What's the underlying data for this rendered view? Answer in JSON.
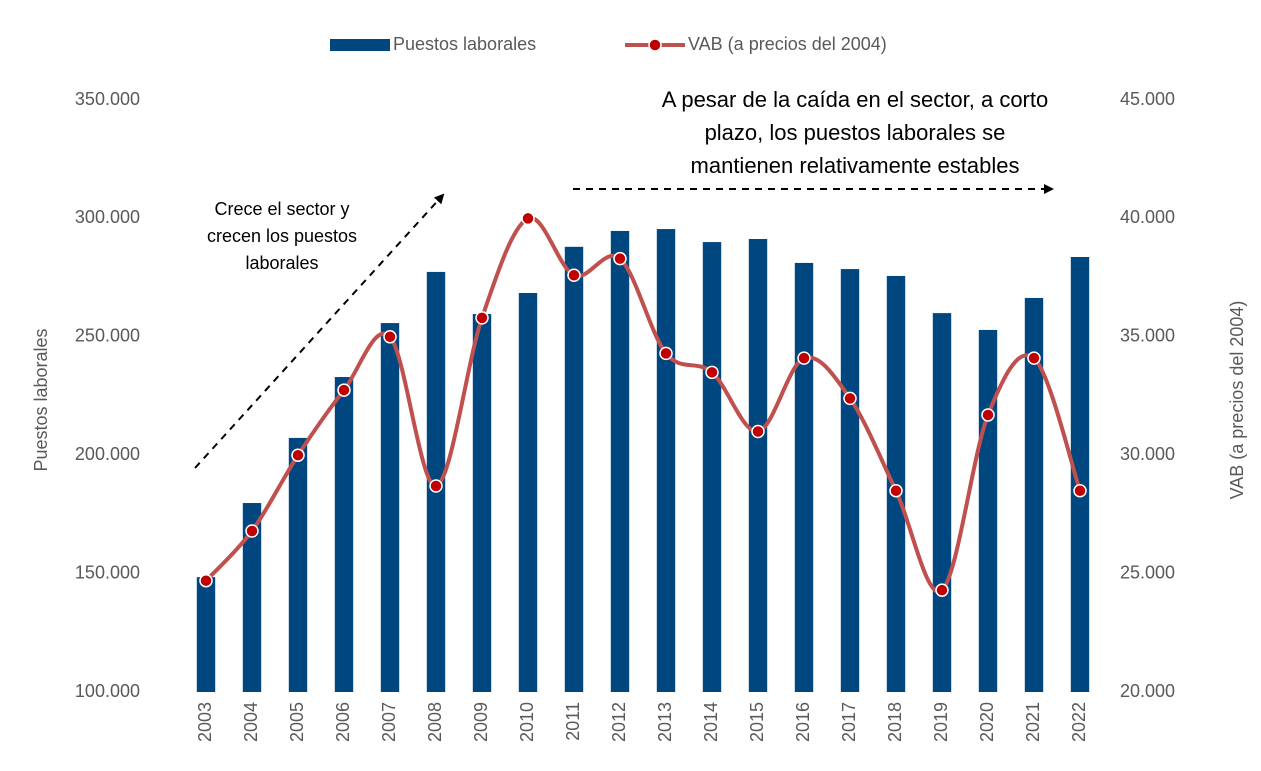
{
  "chart_data": {
    "type": "bar_line",
    "categories": [
      "2003",
      "2004",
      "2005",
      "2006",
      "2007",
      "2008",
      "2009",
      "2010",
      "2011",
      "2012",
      "2013",
      "2014",
      "2015",
      "2016",
      "2017",
      "2018",
      "2019",
      "2020",
      "2021",
      "2022"
    ],
    "series": [
      {
        "name": "Puestos laborales",
        "type": "bar",
        "color": "#00467f",
        "values": [
          148500,
          179800,
          207300,
          233000,
          255800,
          277400,
          259600,
          268500,
          288000,
          294700,
          295500,
          290000,
          291300,
          281200,
          278600,
          275700,
          260000,
          252900,
          266400,
          283700
        ]
      },
      {
        "name": "VAB (a precios del 2004)",
        "type": "line",
        "axis": "y2",
        "color": "#c0504d",
        "marker_color": "#c00000",
        "values": [
          24700,
          26800,
          30000,
          32750,
          35000,
          28700,
          35800,
          40000,
          37600,
          38300,
          34300,
          33500,
          31000,
          34100,
          32400,
          28500,
          24300,
          31700,
          34100,
          28500
        ]
      }
    ],
    "ylabel": "Puestos laborales",
    "y2label": "VAB (a precios del 2004)",
    "ylim": [
      100000,
      350000
    ],
    "yticks": [
      {
        "value": 100000,
        "label": "100.000"
      },
      {
        "value": 150000,
        "label": "150.000"
      },
      {
        "value": 200000,
        "label": "200.000"
      },
      {
        "value": 250000,
        "label": "250.000"
      },
      {
        "value": 300000,
        "label": "300.000"
      },
      {
        "value": 350000,
        "label": "350.000"
      }
    ],
    "y2lim": [
      20000,
      45000
    ],
    "y2ticks": [
      {
        "value": 20000,
        "label": "20.000"
      },
      {
        "value": 25000,
        "label": "25.000"
      },
      {
        "value": 30000,
        "label": "30.000"
      },
      {
        "value": 35000,
        "label": "35.000"
      },
      {
        "value": 40000,
        "label": "40.000"
      },
      {
        "value": 45000,
        "label": "45.000"
      }
    ],
    "legend": "top",
    "annotations": [
      {
        "lines": [
          "Crece el sector y",
          "crecen los puestos",
          "laborales"
        ]
      },
      {
        "lines": [
          "A pesar de la caída en el sector, a corto",
          "plazo, los puestos laborales se",
          "mantienen relativamente estables"
        ]
      }
    ]
  }
}
